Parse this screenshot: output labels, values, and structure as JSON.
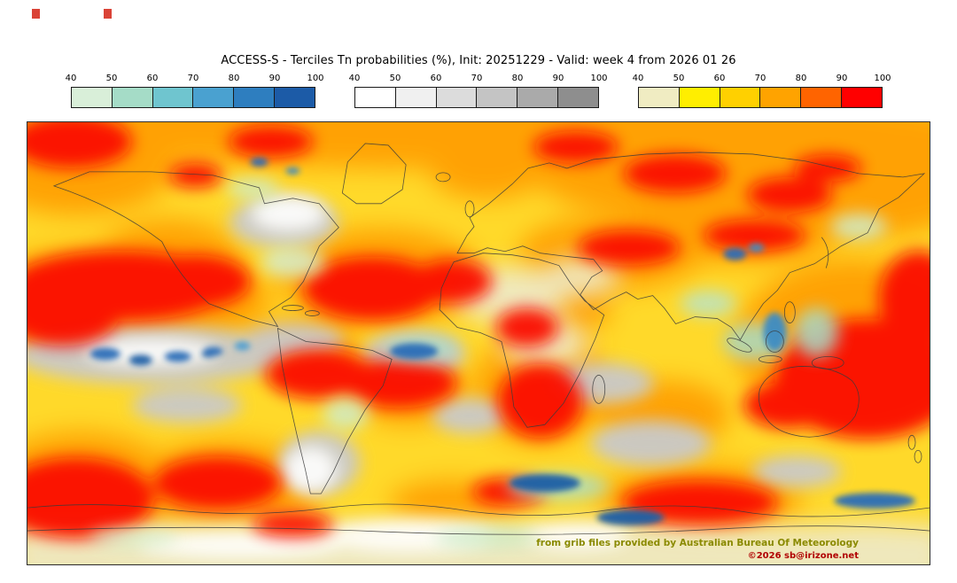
{
  "title": "ACCESS-S - Terciles Tn probabilities (%), Init: 20251229 - Valid: week 4 from 2026 01 26",
  "colorbars": [
    {
      "id": "below-normal-tercile",
      "ticks": [
        "40",
        "50",
        "60",
        "70",
        "80",
        "90",
        "100"
      ],
      "colors": [
        "#d9efd9",
        "#a5dcc7",
        "#6fc5cf",
        "#4aa1d0",
        "#2e7ebf",
        "#1c5ba7"
      ]
    },
    {
      "id": "near-normal-tercile",
      "ticks": [
        "40",
        "50",
        "60",
        "70",
        "80",
        "90",
        "100"
      ],
      "colors": [
        "#ffffff",
        "#f0f0f0",
        "#dcdcdc",
        "#c4c4c4",
        "#aaaaaa",
        "#8e8e8e"
      ]
    },
    {
      "id": "above-normal-tercile",
      "ticks": [
        "40",
        "50",
        "60",
        "70",
        "80",
        "90",
        "100"
      ],
      "colors": [
        "#f0ecc2",
        "#ffee00",
        "#ffd000",
        "#ffa300",
        "#ff6400",
        "#ff0000"
      ]
    }
  ],
  "map": {
    "credit_source": "from grib files provided by Australian Bureau Of Meteorology",
    "credit_copyright": "©2026 sb@irizone.net",
    "credit_source_color": "#8a8a00",
    "credit_copyright_color": "#b00000",
    "base_field_color": "#ffd92a"
  }
}
